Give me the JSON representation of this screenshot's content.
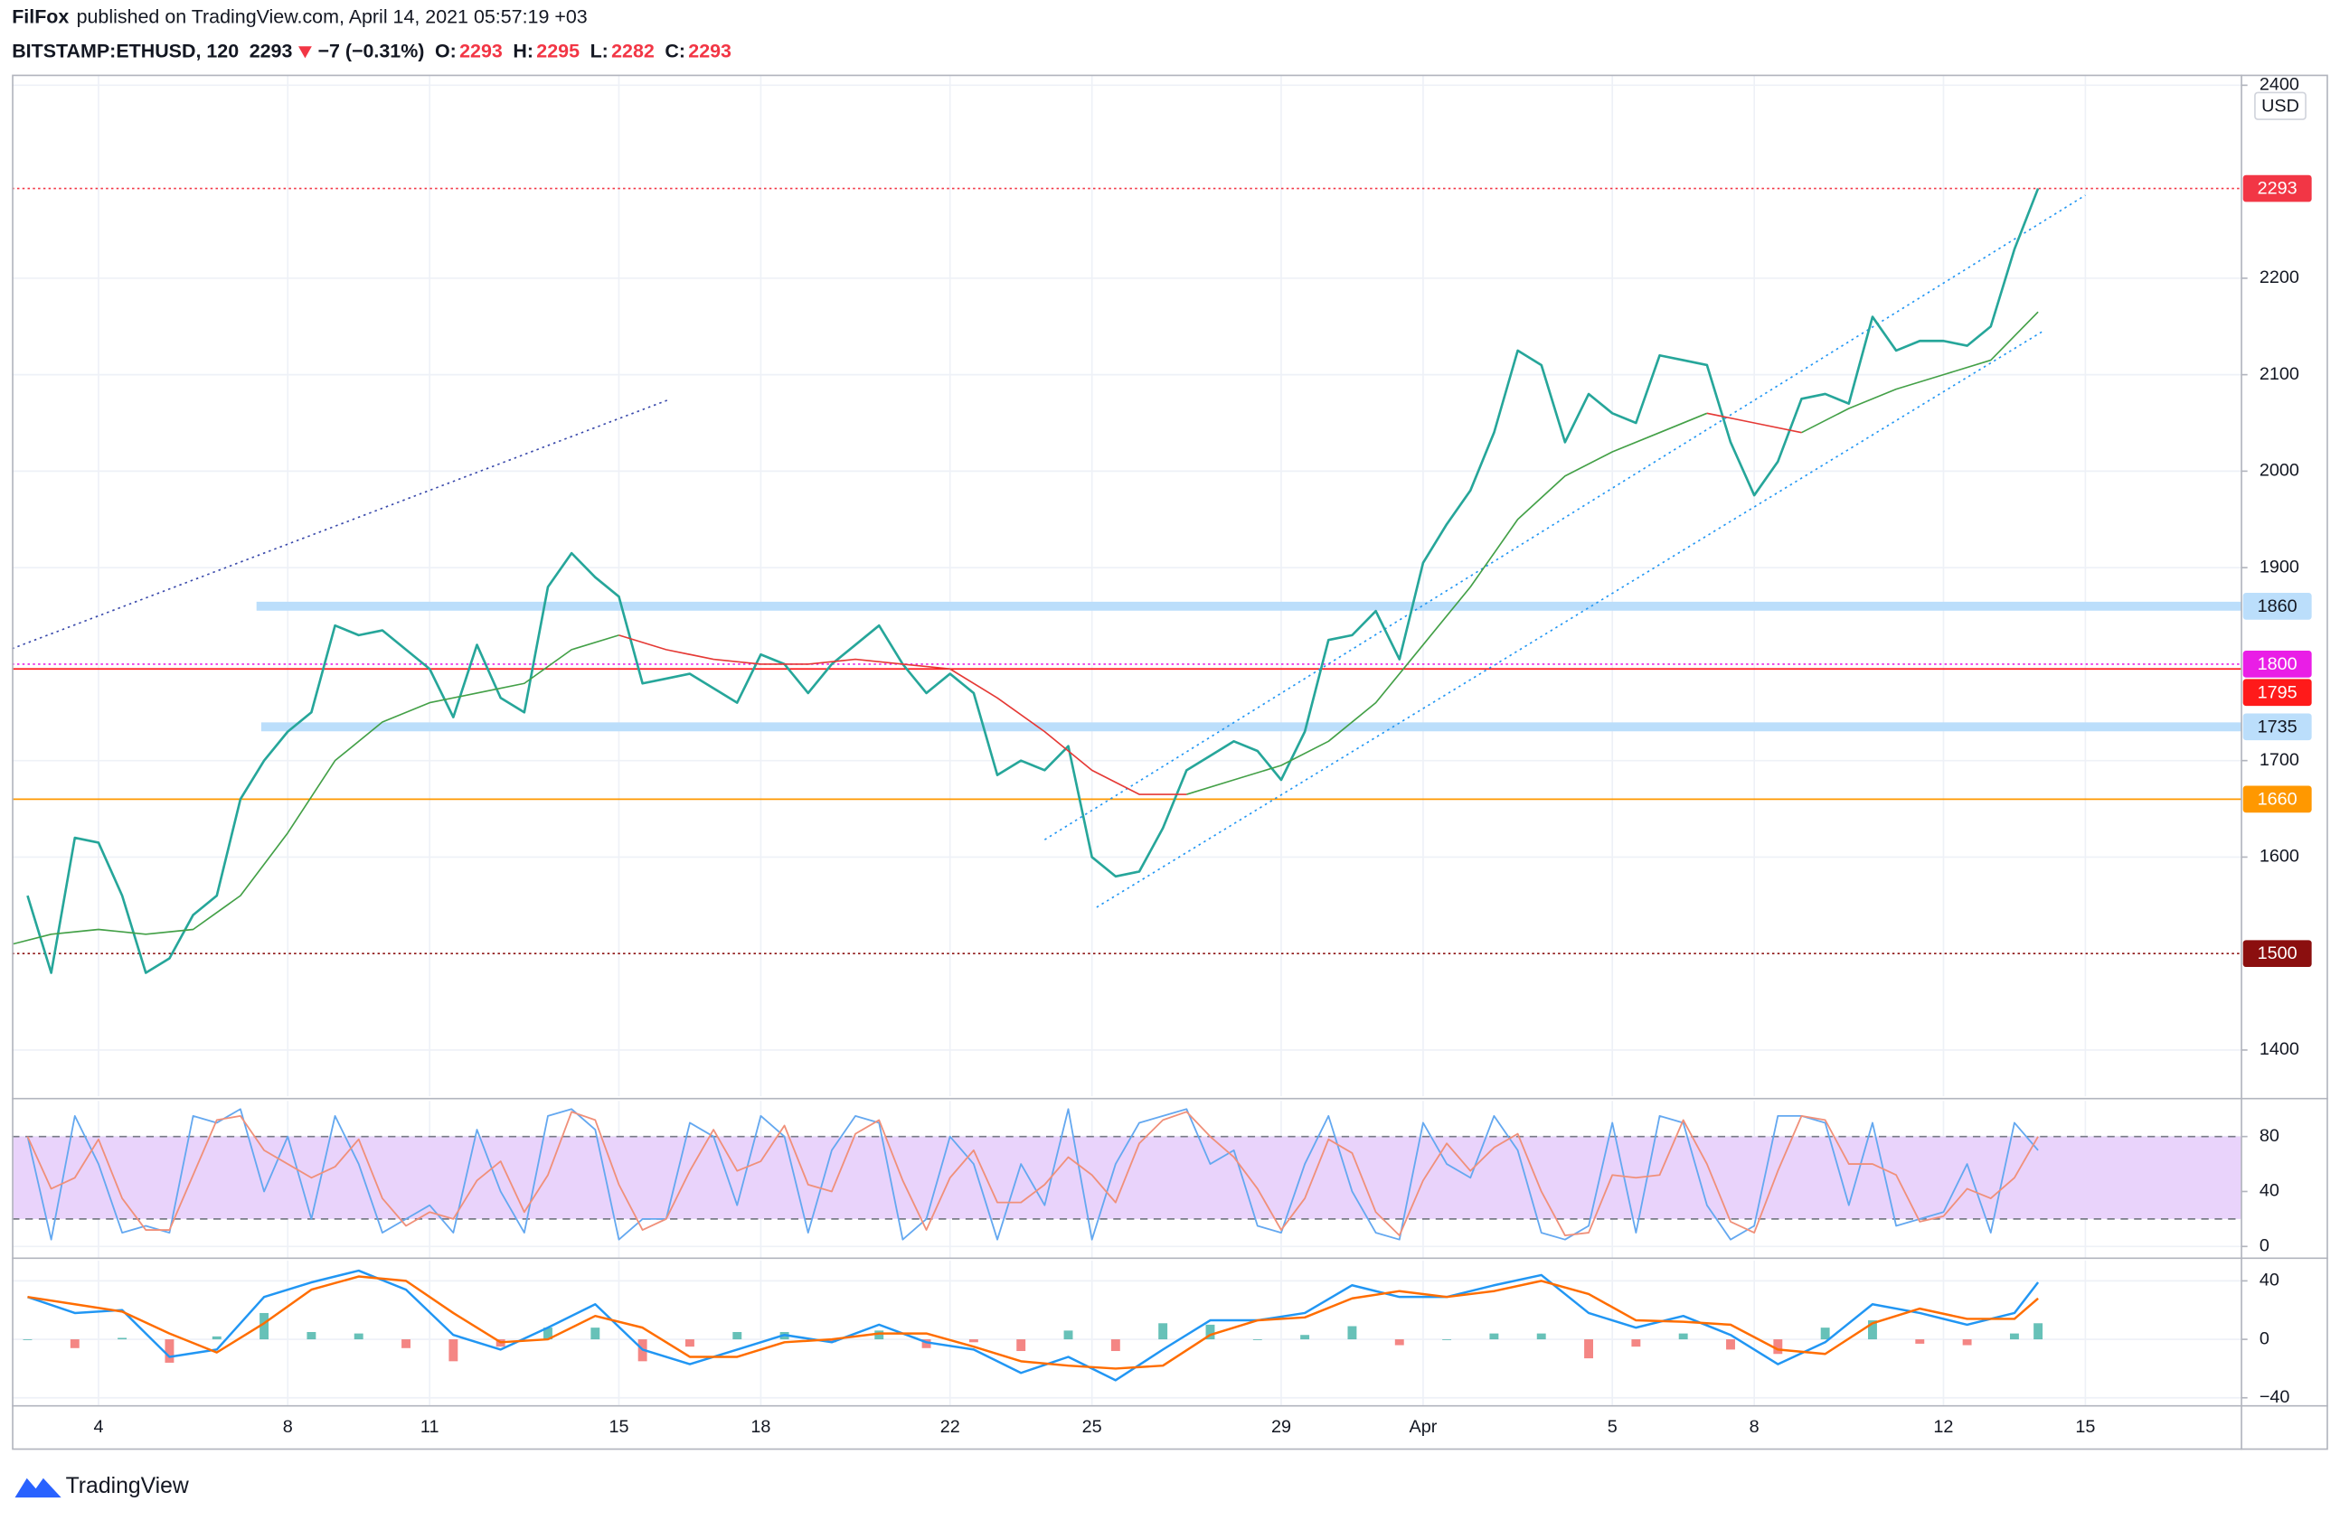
{
  "header": {
    "author": "FilFox",
    "published": "published on TradingView.com, April 14, 2021 05:57:19 +03",
    "symbol": "BITSTAMP:ETHUSD, 120",
    "last": "2293",
    "change": "−7 (−0.31%)",
    "ohlc": [
      {
        "label": "O:",
        "value": "2293"
      },
      {
        "label": "H:",
        "value": "2295"
      },
      {
        "label": "L:",
        "value": "2282"
      },
      {
        "label": "C:",
        "value": "2293"
      }
    ]
  },
  "footer": {
    "brand": "TradingView"
  },
  "chart_data": [
    {
      "type": "line",
      "currency": "USD",
      "grid": true,
      "xlim": [
        2.17,
        49.3
      ],
      "xticks": [
        4,
        8,
        11,
        15,
        18,
        22,
        25,
        29,
        {
          "value": 32,
          "label": "Apr"
        },
        {
          "value": 36,
          "label": "5"
        },
        {
          "value": 39,
          "label": "8"
        },
        {
          "value": 43,
          "label": "12"
        },
        {
          "value": 46,
          "label": "15"
        }
      ],
      "ylim": [
        1352,
        2411
      ],
      "yticks": [
        1400,
        1600,
        1700,
        1900,
        2000,
        2100,
        2200,
        2400
      ],
      "series": [
        {
          "color": "#26a69a",
          "width": 1.6,
          "x": [
            2.5,
            3,
            3.5,
            4,
            4.5,
            5,
            5.5,
            6,
            6.5,
            7,
            7.5,
            8,
            8.5,
            9,
            9.5,
            10,
            10.5,
            11,
            11.5,
            12,
            12.5,
            13,
            13.5,
            14,
            14.5,
            15,
            15.5,
            16,
            16.5,
            17,
            17.5,
            18,
            18.5,
            19,
            19.5,
            20,
            20.5,
            21,
            21.5,
            22,
            22.5,
            23,
            23.5,
            24,
            24.5,
            25,
            25.5,
            26,
            26.5,
            27,
            27.5,
            28,
            28.5,
            29,
            29.5,
            30,
            30.5,
            31,
            31.5,
            32,
            32.5,
            33,
            33.5,
            34,
            34.5,
            35,
            35.5,
            36,
            36.5,
            37,
            37.5,
            38,
            38.5,
            39,
            39.5,
            40,
            40.5,
            41,
            41.5,
            42,
            42.5,
            43,
            43.5,
            44,
            44.5,
            45
          ],
          "values": [
            1560,
            1480,
            1620,
            1615,
            1560,
            1480,
            1495,
            1540,
            1560,
            1660,
            1700,
            1730,
            1750,
            1840,
            1830,
            1835,
            1815,
            1795,
            1745,
            1820,
            1765,
            1750,
            1880,
            1915,
            1890,
            1870,
            1780,
            1785,
            1790,
            1775,
            1760,
            1810,
            1800,
            1770,
            1800,
            1820,
            1840,
            1800,
            1770,
            1790,
            1770,
            1685,
            1700,
            1690,
            1715,
            1600,
            1580,
            1585,
            1630,
            1690,
            1705,
            1720,
            1710,
            1680,
            1730,
            1825,
            1830,
            1855,
            1805,
            1905,
            1945,
            1980,
            2040,
            2125,
            2110,
            2030,
            2080,
            2060,
            2050,
            2120,
            2115,
            2110,
            2030,
            1975,
            2010,
            2075,
            2080,
            2070,
            2160,
            2125,
            2135,
            2135,
            2130,
            2150,
            2230,
            2293
          ]
        },
        {
          "color": "#43a047",
          "width": 1,
          "x": [
            2.2,
            3,
            4,
            5,
            6,
            7,
            8,
            9,
            10,
            11,
            12,
            13,
            14,
            15,
            16,
            17,
            18,
            19,
            20,
            21,
            22,
            23,
            24,
            25,
            26,
            27,
            28,
            29,
            30,
            31,
            32,
            33,
            34,
            35,
            36,
            37,
            38,
            39,
            40,
            41,
            42,
            43,
            44,
            45
          ],
          "values": [
            1510,
            1520,
            1525,
            1520,
            1525,
            1560,
            1625,
            1700,
            1740,
            1760,
            1770,
            1780,
            1815,
            1830,
            null,
            null,
            null,
            null,
            null,
            null,
            null,
            null,
            null,
            null,
            null,
            1665,
            1680,
            1695,
            1720,
            1760,
            1820,
            1880,
            1950,
            1995,
            2020,
            2040,
            2060,
            null,
            2040,
            2065,
            2085,
            2100,
            2115,
            2165
          ]
        },
        {
          "color": "#e53935",
          "width": 1,
          "x": [
            2.2,
            3,
            4,
            5,
            6,
            7,
            8,
            9,
            10,
            11,
            12,
            13,
            14,
            15,
            16,
            17,
            18,
            19,
            20,
            21,
            22,
            23,
            24,
            25,
            26,
            27,
            28,
            29,
            30,
            31,
            32,
            33,
            34,
            35,
            36,
            37,
            38,
            39,
            40,
            41,
            42,
            43,
            44,
            45
          ],
          "values": [
            null,
            null,
            null,
            null,
            null,
            null,
            null,
            null,
            null,
            null,
            null,
            null,
            null,
            1830,
            1815,
            1805,
            1800,
            1800,
            1805,
            1800,
            1795,
            1765,
            1730,
            1690,
            1665,
            1665,
            null,
            null,
            null,
            null,
            null,
            null,
            null,
            null,
            null,
            null,
            2060,
            2050,
            2040,
            null,
            null,
            null,
            null,
            null
          ]
        }
      ],
      "lines": [
        {
          "color": "#3949ab",
          "x": [
            2.17,
            16.05
          ],
          "values": [
            1816,
            2074
          ]
        },
        {
          "color": "#2196f3",
          "x": [
            24,
            46
          ],
          "values": [
            1618,
            2286
          ]
        },
        {
          "color": "#2196f3",
          "x": [
            25.1,
            45.1
          ],
          "values": [
            1548,
            2145
          ]
        }
      ],
      "levels": [
        {
          "value": 2293,
          "color": "#f23645",
          "style": "dotted",
          "text_color": "#ffffff"
        },
        {
          "value": 1860,
          "color": "#bbdefb",
          "style": "band",
          "from": 7.34,
          "text_color": "#131722"
        },
        {
          "value": 1800,
          "color": "#e91ee6",
          "style": "dotted",
          "text_color": "#ffffff"
        },
        {
          "value": 1795,
          "color": "#ff1a1a",
          "style": "solid",
          "text_color": "#ffffff"
        },
        {
          "value": 1735,
          "color": "#bbdefb",
          "style": "band",
          "from": 7.44,
          "text_color": "#131722"
        },
        {
          "value": 1660,
          "color": "#ff9800",
          "style": "solid",
          "text_color": "#ffffff"
        },
        {
          "value": 1500,
          "color": "#8b0f0f",
          "style": "dotted",
          "text_color": "#ffffff"
        }
      ]
    },
    {
      "type": "stochastic",
      "ylim": [
        -8,
        106
      ],
      "yticks": [
        0,
        40,
        80
      ],
      "band": [
        20,
        80
      ],
      "band_color": "#e9d3fb",
      "x": [
        2.5,
        3,
        3.5,
        4,
        4.5,
        5,
        5.5,
        6,
        6.5,
        7,
        7.5,
        8,
        8.5,
        9,
        9.5,
        10,
        10.5,
        11,
        11.5,
        12,
        12.5,
        13,
        13.5,
        14,
        14.5,
        15,
        15.5,
        16,
        16.5,
        17,
        17.5,
        18,
        18.5,
        19,
        19.5,
        20,
        20.5,
        21,
        21.5,
        22,
        22.5,
        23,
        23.5,
        24,
        24.5,
        25,
        25.5,
        26,
        26.5,
        27,
        27.5,
        28,
        28.5,
        29,
        29.5,
        30,
        30.5,
        31,
        31.5,
        32,
        32.5,
        33,
        33.5,
        34,
        34.5,
        35,
        35.5,
        36,
        36.5,
        37,
        37.5,
        38,
        38.5,
        39,
        39.5,
        40,
        40.5,
        41,
        41.5,
        42,
        42.5,
        43,
        43.5,
        44,
        44.5,
        45
      ],
      "series": [
        {
          "color": "#64a8f0",
          "values": [
            80,
            5,
            95,
            60,
            10,
            15,
            10,
            95,
            90,
            100,
            40,
            80,
            20,
            95,
            60,
            10,
            20,
            30,
            10,
            85,
            40,
            10,
            95,
            100,
            85,
            5,
            20,
            20,
            90,
            80,
            30,
            95,
            80,
            10,
            70,
            95,
            90,
            5,
            20,
            80,
            60,
            5,
            60,
            30,
            100,
            5,
            60,
            90,
            95,
            100,
            60,
            70,
            15,
            10,
            60,
            95,
            40,
            10,
            5,
            90,
            60,
            50,
            95,
            70,
            10,
            5,
            15,
            90,
            10,
            95,
            90,
            30,
            5,
            15,
            95,
            95,
            90,
            30,
            90,
            15,
            20,
            25,
            60,
            10,
            90,
            70
          ]
        },
        {
          "color": "#f0907a",
          "values": [
            80,
            42,
            50,
            78,
            35,
            12,
            12,
            52,
            92,
            95,
            70,
            60,
            50,
            58,
            78,
            35,
            15,
            25,
            20,
            48,
            62,
            25,
            52,
            98,
            92,
            45,
            12,
            20,
            55,
            85,
            55,
            62,
            88,
            45,
            40,
            82,
            92,
            48,
            12,
            50,
            70,
            32,
            32,
            45,
            65,
            52,
            32,
            75,
            92,
            98,
            80,
            65,
            42,
            12,
            35,
            78,
            68,
            25,
            8,
            48,
            75,
            55,
            72,
            82,
            40,
            8,
            10,
            52,
            50,
            52,
            92,
            60,
            18,
            10,
            55,
            95,
            92,
            60,
            60,
            52,
            18,
            22,
            42,
            35,
            50,
            80
          ]
        }
      ]
    },
    {
      "type": "macd",
      "ylim": [
        -45,
        54
      ],
      "yticks": [
        {
          "value": -40,
          "label": "−40"
        },
        0,
        40
      ],
      "x": [
        2.5,
        3.5,
        4.5,
        5.5,
        6.5,
        7.5,
        8.5,
        9.5,
        10.5,
        11.5,
        12.5,
        13.5,
        14.5,
        15.5,
        16.5,
        17.5,
        18.5,
        19.5,
        20.5,
        21.5,
        22.5,
        23.5,
        24.5,
        25.5,
        26.5,
        27.5,
        28.5,
        29.5,
        30.5,
        31.5,
        32.5,
        33.5,
        34.5,
        35.5,
        36.5,
        37.5,
        38.5,
        39.5,
        40.5,
        41.5,
        42.5,
        43.5,
        44.5,
        45
      ],
      "series": [
        {
          "color": "#2196f3",
          "values": [
            29,
            18,
            20,
            -12,
            -7,
            29,
            39,
            47,
            34,
            3,
            -7,
            8,
            24,
            -7,
            -17,
            -7,
            3,
            -2,
            10,
            -2,
            -7,
            -23,
            -12,
            -28,
            -7,
            13,
            13,
            18,
            37,
            29,
            29,
            37,
            44,
            18,
            8,
            16,
            3,
            -17,
            -2,
            24,
            18,
            10,
            18,
            39
          ]
        },
        {
          "color": "#ff6d00",
          "values": [
            29,
            24,
            19,
            4,
            -9,
            11,
            34,
            43,
            40,
            18,
            -2,
            0,
            16,
            8,
            -12,
            -12,
            -2,
            0,
            4,
            4,
            -5,
            -15,
            -18,
            -20,
            -18,
            3,
            13,
            15,
            28,
            33,
            29,
            33,
            40,
            31,
            13,
            12,
            10,
            -7,
            -10,
            11,
            21,
            14,
            14,
            28
          ]
        }
      ],
      "histogram": {
        "colors": [
          "#26a69a",
          "#ef5350"
        ],
        "values": [
          0,
          -6,
          1,
          -16,
          2,
          18,
          5,
          4,
          -6,
          -15,
          -5,
          8,
          8,
          -15,
          -5,
          5,
          5,
          -2,
          6,
          -6,
          -2,
          -8,
          6,
          -8,
          11,
          10,
          0,
          3,
          9,
          -4,
          0,
          4,
          4,
          -13,
          -5,
          4,
          -7,
          -10,
          8,
          13,
          -3,
          -4,
          4,
          11
        ]
      }
    }
  ]
}
